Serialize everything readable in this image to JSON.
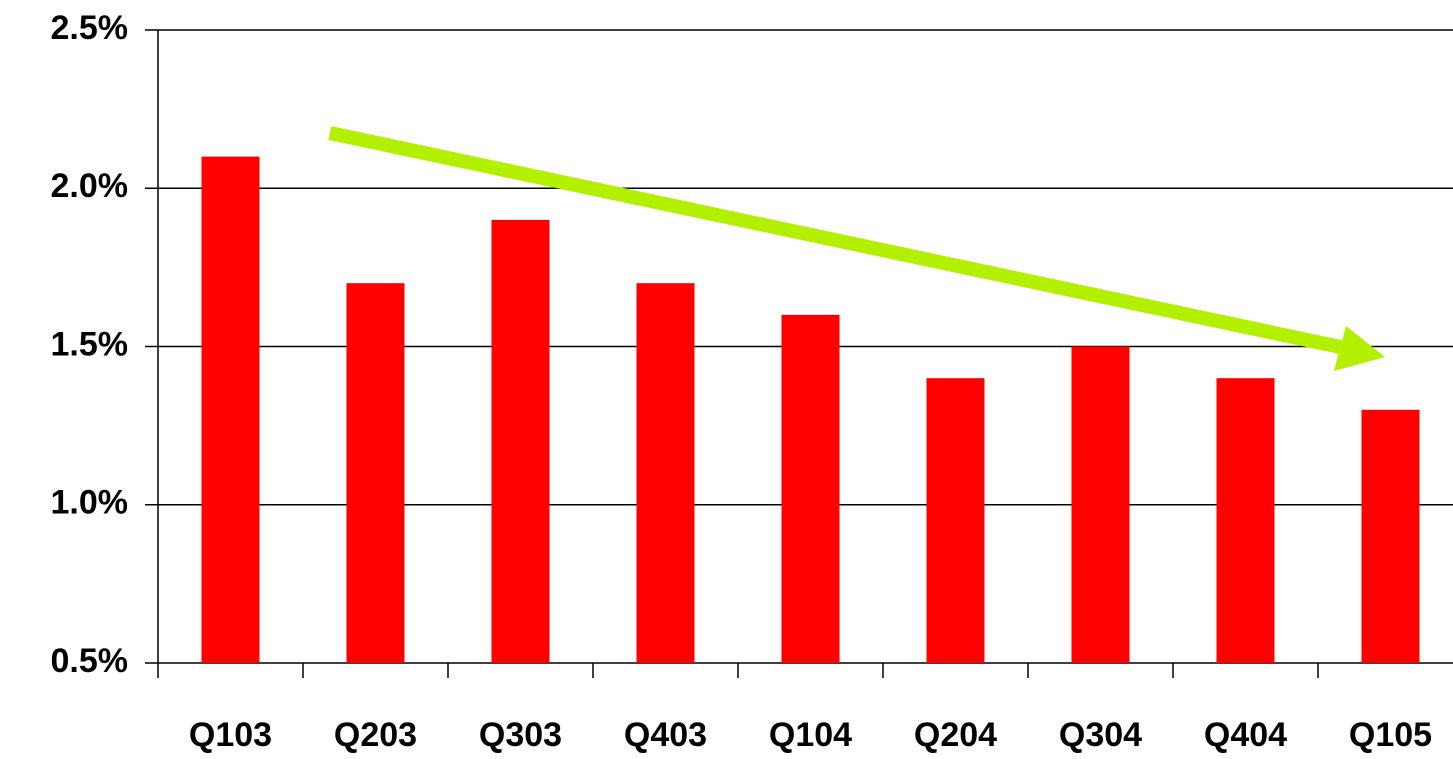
{
  "chart_data": {
    "type": "bar",
    "categories": [
      "Q103",
      "Q203",
      "Q303",
      "Q403",
      "Q104",
      "Q204",
      "Q304",
      "Q404",
      "Q105"
    ],
    "values": [
      2.1,
      1.7,
      1.9,
      1.7,
      1.6,
      1.4,
      1.5,
      1.4,
      1.3
    ],
    "color": "#ff0000",
    "ylim": [
      0.5,
      2.5
    ],
    "yticks": [
      {
        "value": 0.5,
        "label": "0.5%"
      },
      {
        "value": 1.0,
        "label": "1.0%"
      },
      {
        "value": 1.5,
        "label": "1.5%"
      },
      {
        "value": 2.0,
        "label": "2.0%"
      },
      {
        "value": 2.5,
        "label": "2.5%"
      }
    ],
    "grid": true
  }
}
